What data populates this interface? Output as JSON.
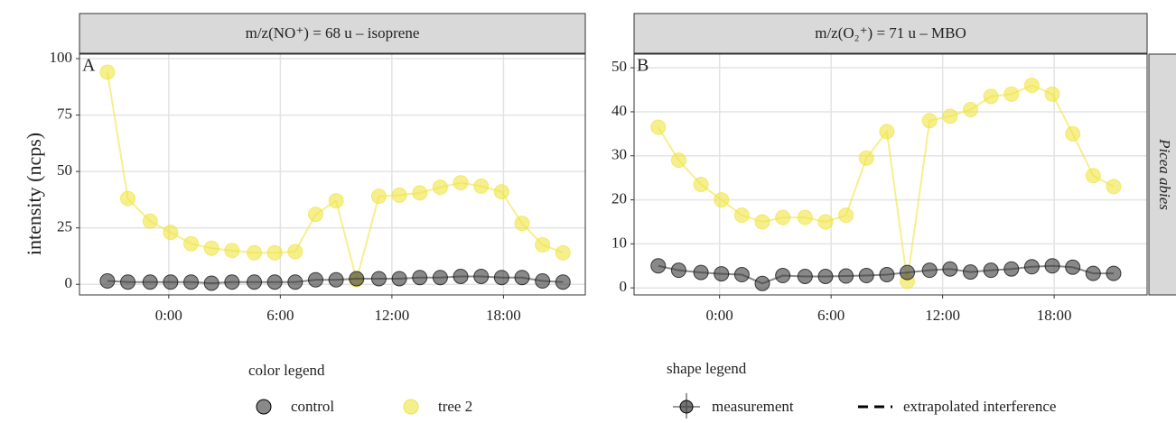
{
  "chart_data": [
    {
      "type": "line",
      "title": "m/z(NO⁺) = 68 u – isoprene",
      "panel_label": "A",
      "y_label": "intensity (ncps)",
      "x": [
        -3.3,
        -2.2,
        -1.0,
        0.1,
        1.2,
        2.3,
        3.4,
        4.6,
        5.7,
        6.8,
        7.9,
        9.0,
        10.1,
        11.3,
        12.4,
        13.5,
        14.6,
        15.7,
        16.8,
        17.9,
        19.0,
        20.1,
        21.2
      ],
      "series": [
        {
          "name": "control",
          "color": "#3a3a3a",
          "values": [
            1.5,
            1,
            1,
            1,
            1,
            0.5,
            1,
            1,
            1,
            1,
            2,
            2,
            2.5,
            2.5,
            2.5,
            3,
            3,
            3.5,
            3.5,
            3,
            3,
            1.5,
            1
          ]
        },
        {
          "name": "tree 2",
          "color": "#f0e442",
          "values": [
            94,
            38,
            28,
            23,
            18,
            16,
            15,
            14,
            14,
            14.5,
            31,
            37,
            2,
            39,
            39.5,
            40.5,
            43,
            45,
            43.5,
            41,
            27,
            17.5,
            14
          ]
        }
      ],
      "xlim": [
        -4.8,
        22.4
      ],
      "ylim": [
        -4.7,
        102
      ],
      "xticks": [
        {
          "value": 0,
          "label": "0:00"
        },
        {
          "value": 6,
          "label": "6:00"
        },
        {
          "value": 12,
          "label": "12:00"
        },
        {
          "value": 18,
          "label": "18:00"
        }
      ],
      "yticks": [
        0,
        25,
        50,
        75,
        100
      ],
      "grid": true
    },
    {
      "type": "line",
      "title": "m/z(O₂⁺) = 71 u – MBO",
      "panel_label": "B",
      "facet_label": "Picea abies",
      "x": [
        -3.3,
        -2.2,
        -1.0,
        0.1,
        1.2,
        2.3,
        3.4,
        4.6,
        5.7,
        6.8,
        7.9,
        9.0,
        10.1,
        11.3,
        12.4,
        13.5,
        14.6,
        15.7,
        16.8,
        17.9,
        19.0,
        20.1,
        21.2
      ],
      "series": [
        {
          "name": "control",
          "color": "#3a3a3a",
          "values": [
            5,
            4,
            3.5,
            3.2,
            3,
            1,
            2.8,
            2.6,
            2.6,
            2.7,
            2.8,
            3,
            3.5,
            4,
            4.3,
            3.6,
            4,
            4.3,
            4.8,
            5,
            4.7,
            3.3,
            3.3
          ]
        },
        {
          "name": "tree 2",
          "color": "#f0e442",
          "values": [
            36.5,
            29,
            23.5,
            20,
            16.5,
            15,
            16,
            16,
            15,
            16.5,
            29.5,
            35.5,
            1.5,
            38,
            39,
            40.5,
            43.5,
            44,
            46,
            44,
            35,
            25.5,
            23
          ]
        }
      ],
      "xlim": [
        -4.6,
        23.0
      ],
      "ylim": [
        -1.6,
        53.1
      ],
      "xticks": [
        {
          "value": 0,
          "label": "0:00"
        },
        {
          "value": 6,
          "label": "6:00"
        },
        {
          "value": 12,
          "label": "12:00"
        },
        {
          "value": 18,
          "label": "18:00"
        }
      ],
      "yticks": [
        0,
        10,
        20,
        30,
        40,
        50
      ],
      "grid": true
    }
  ],
  "legend": {
    "color_title": "color legend",
    "shape_title": "shape legend",
    "measurement": "measurement",
    "interference": "extrapolated interference"
  }
}
